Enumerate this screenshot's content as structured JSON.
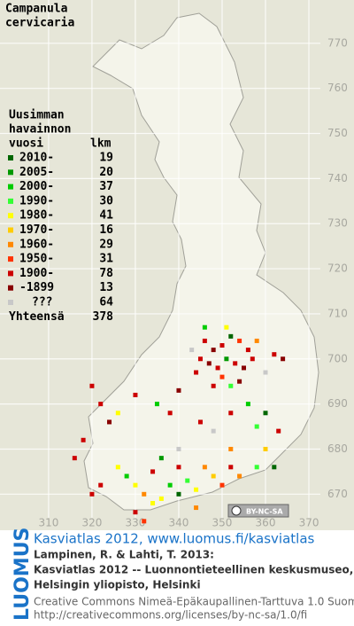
{
  "map": {
    "title": [
      "Campanula",
      "cervicaria"
    ],
    "xlim": [
      298.8,
      380.4
    ],
    "ylim": [
      662,
      779.6
    ],
    "xticks": [
      310,
      320,
      330,
      340,
      350,
      360,
      370
    ],
    "yticks": [
      670,
      680,
      690,
      700,
      710,
      720,
      730,
      740,
      750,
      760,
      770
    ],
    "legend": {
      "heading": [
        "Uusimman",
        "havainnon",
        "vuosi"
      ],
      "count_heading": "lkm",
      "entries": [
        {
          "label": "2010-",
          "color": "#006600",
          "count": 19
        },
        {
          "label": "2005-",
          "color": "#009900",
          "count": 20
        },
        {
          "label": "2000-",
          "color": "#00cc00",
          "count": 37
        },
        {
          "label": "1990-",
          "color": "#33ff33",
          "count": 30
        },
        {
          "label": "1980-",
          "color": "#ffff00",
          "count": 41
        },
        {
          "label": "1970-",
          "color": "#ffcc00",
          "count": 16
        },
        {
          "label": "1960-",
          "color": "#ff8800",
          "count": 29
        },
        {
          "label": "1950-",
          "color": "#ff3300",
          "count": 31
        },
        {
          "label": "1900-",
          "color": "#cc0000",
          "count": 78
        },
        {
          "label": "-1899",
          "color": "#880000",
          "count": 13
        },
        {
          "label": "???",
          "color": "#c8c8c8",
          "count": 64
        }
      ],
      "total_label": "Yhteensä",
      "total": 378
    },
    "badge": "BY-NC-SA",
    "squares": [
      [
        346,
        704,
        "1900-"
      ],
      [
        348,
        702,
        "-1899"
      ],
      [
        350,
        703,
        "1900-"
      ],
      [
        352,
        705,
        "2010-"
      ],
      [
        354,
        704,
        "1950-"
      ],
      [
        356,
        702,
        "1900-"
      ],
      [
        345,
        700,
        "1900-"
      ],
      [
        347,
        699,
        "-1899"
      ],
      [
        349,
        698,
        "1900-"
      ],
      [
        351,
        700,
        "2005-"
      ],
      [
        353,
        699,
        "1900-"
      ],
      [
        355,
        698,
        "-1899"
      ],
      [
        357,
        700,
        "1900-"
      ],
      [
        350,
        696,
        "1950-"
      ],
      [
        352,
        694,
        "1990-"
      ],
      [
        354,
        695,
        "-1899"
      ],
      [
        348,
        694,
        "1900-"
      ],
      [
        358,
        704,
        "1960-"
      ],
      [
        344,
        697,
        "1900-"
      ],
      [
        346,
        707,
        "2000-"
      ],
      [
        351,
        707,
        "1980-"
      ],
      [
        362,
        701,
        "1900-"
      ],
      [
        364,
        700,
        "-1899"
      ],
      [
        360,
        697,
        "???"
      ],
      [
        343,
        702,
        "???"
      ],
      [
        320,
        694,
        "1900-"
      ],
      [
        322,
        690,
        "1900-"
      ],
      [
        324,
        686,
        "-1899"
      ],
      [
        318,
        682,
        "1900-"
      ],
      [
        316,
        678,
        "1900-"
      ],
      [
        326,
        688,
        "1980-"
      ],
      [
        330,
        692,
        "1900-"
      ],
      [
        335,
        690,
        "2000-"
      ],
      [
        338,
        688,
        "1900-"
      ],
      [
        340,
        693,
        "-1899"
      ],
      [
        356,
        690,
        "2000-"
      ],
      [
        360,
        688,
        "2010-"
      ],
      [
        358,
        685,
        "1990-"
      ],
      [
        363,
        684,
        "1900-"
      ],
      [
        345,
        686,
        "1900-"
      ],
      [
        348,
        684,
        "???"
      ],
      [
        352,
        688,
        "1900-"
      ],
      [
        360,
        680,
        "1970-"
      ],
      [
        362,
        676,
        "2010-"
      ],
      [
        358,
        676,
        "1990-"
      ],
      [
        326,
        676,
        "1980-"
      ],
      [
        328,
        674,
        "2000-"
      ],
      [
        330,
        672,
        "1980-"
      ],
      [
        332,
        670,
        "1960-"
      ],
      [
        334,
        668,
        "1980-"
      ],
      [
        336,
        669,
        "1980-"
      ],
      [
        338,
        672,
        "2000-"
      ],
      [
        340,
        670,
        "2010-"
      ],
      [
        342,
        673,
        "1990-"
      ],
      [
        344,
        671,
        "1980-"
      ],
      [
        346,
        676,
        "1960-"
      ],
      [
        348,
        674,
        "1970-"
      ],
      [
        350,
        672,
        "1950-"
      ],
      [
        352,
        676,
        "1900-"
      ],
      [
        354,
        674,
        "1960-"
      ],
      [
        340,
        676,
        "1900-"
      ],
      [
        336,
        678,
        "2005-"
      ],
      [
        334,
        675,
        "1900-"
      ],
      [
        330,
        666,
        "1900-"
      ],
      [
        332,
        664,
        "1950-"
      ],
      [
        344,
        667,
        "1960-"
      ],
      [
        320,
        670,
        "1900-"
      ],
      [
        322,
        672,
        "1900-"
      ],
      [
        340,
        680,
        "???"
      ],
      [
        352,
        680,
        "1960-"
      ]
    ]
  },
  "footer": {
    "logo": "LUOMUS",
    "link": "Kasviatlas 2012, www.luomus.fi/kasviatlas",
    "citation": [
      "Lampinen, R. & Lahti, T. 2013:",
      "Kasviatlas 2012 -- Luonnontieteellinen keskusmuseo,",
      "Helsingin yliopisto, Helsinki"
    ],
    "license": [
      "Creative Commons Nimeä-Epäkaupallinen-Tarttuva 1.0 Suomi",
      "http://creativecommons.org/licenses/by-nc-sa/1.0/fi"
    ]
  }
}
